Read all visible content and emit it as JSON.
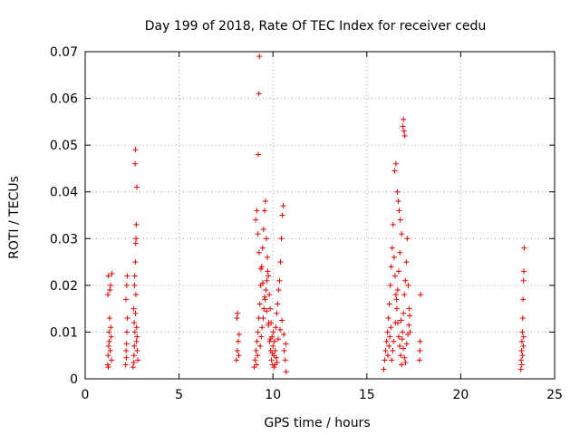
{
  "chart_data": {
    "type": "scatter",
    "title": "Day 199 of 2018, Rate Of TEC Index for receiver cedu",
    "xlabel": "GPS time / hours",
    "ylabel": "ROTI / TECUs",
    "xlim": [
      0,
      25
    ],
    "ylim": [
      0,
      0.07
    ],
    "xticks": [
      "0",
      "5",
      "10",
      "15",
      "20",
      "25"
    ],
    "yticks": [
      "0",
      "0.01",
      "0.02",
      "0.03",
      "0.04",
      "0.05",
      "0.06",
      "0.07"
    ],
    "grid": true,
    "marker": "plus",
    "color": "#e00000",
    "series": [
      {
        "points": [
          [
            1.2,
            0.003
          ],
          [
            1.22,
            0.005
          ],
          [
            1.25,
            0.007
          ],
          [
            1.27,
            0.01
          ],
          [
            1.3,
            0.013
          ],
          [
            1.21,
            0.018
          ],
          [
            1.24,
            0.022
          ],
          [
            1.35,
            0.02
          ],
          [
            1.38,
            0.009
          ],
          [
            1.4,
            0.004
          ],
          [
            1.33,
            0.006
          ],
          [
            1.28,
            0.008
          ],
          [
            1.36,
            0.011
          ],
          [
            1.23,
            0.0025
          ],
          [
            1.42,
            0.0225
          ],
          [
            1.31,
            0.019
          ],
          [
            2.15,
            0.003
          ],
          [
            2.18,
            0.006
          ],
          [
            2.2,
            0.0075
          ],
          [
            2.22,
            0.01
          ],
          [
            2.25,
            0.013
          ],
          [
            2.17,
            0.017
          ],
          [
            2.21,
            0.02
          ],
          [
            2.24,
            0.022
          ],
          [
            2.19,
            0.0045
          ],
          [
            2.55,
            0.0025
          ],
          [
            2.6,
            0.005
          ],
          [
            2.62,
            0.007
          ],
          [
            2.65,
            0.01
          ],
          [
            2.68,
            0.014
          ],
          [
            2.7,
            0.018
          ],
          [
            2.63,
            0.02
          ],
          [
            2.67,
            0.025
          ],
          [
            2.69,
            0.029
          ],
          [
            2.72,
            0.033
          ],
          [
            2.75,
            0.041
          ],
          [
            2.66,
            0.046
          ],
          [
            2.68,
            0.049
          ],
          [
            2.58,
            0.015
          ],
          [
            2.61,
            0.012
          ],
          [
            2.73,
            0.008
          ],
          [
            2.77,
            0.006
          ],
          [
            2.8,
            0.004
          ],
          [
            2.64,
            0.022
          ],
          [
            2.71,
            0.03
          ],
          [
            2.74,
            0.011
          ],
          [
            2.76,
            0.009
          ],
          [
            2.59,
            0.0035
          ],
          [
            8.05,
            0.004
          ],
          [
            8.1,
            0.006
          ],
          [
            8.15,
            0.008
          ],
          [
            8.2,
            0.0095
          ],
          [
            8.08,
            0.013
          ],
          [
            8.12,
            0.014
          ],
          [
            8.18,
            0.005
          ],
          [
            9.0,
            0.0025
          ],
          [
            9.05,
            0.004
          ],
          [
            9.1,
            0.006
          ],
          [
            9.15,
            0.008
          ],
          [
            9.2,
            0.01
          ],
          [
            9.25,
            0.013
          ],
          [
            9.3,
            0.016
          ],
          [
            9.35,
            0.02
          ],
          [
            9.4,
            0.024
          ],
          [
            9.45,
            0.028
          ],
          [
            9.5,
            0.032
          ],
          [
            9.55,
            0.036
          ],
          [
            9.6,
            0.038
          ],
          [
            9.65,
            0.03
          ],
          [
            9.7,
            0.026
          ],
          [
            9.75,
            0.022
          ],
          [
            9.8,
            0.018
          ],
          [
            9.85,
            0.015
          ],
          [
            9.9,
            0.012
          ],
          [
            9.95,
            0.009
          ],
          [
            10.0,
            0.007
          ],
          [
            10.05,
            0.005
          ],
          [
            10.1,
            0.003
          ],
          [
            10.15,
            0.011
          ],
          [
            10.2,
            0.014
          ],
          [
            10.25,
            0.016
          ],
          [
            10.3,
            0.019
          ],
          [
            10.35,
            0.021
          ],
          [
            10.4,
            0.025
          ],
          [
            10.45,
            0.03
          ],
          [
            10.5,
            0.035
          ],
          [
            10.55,
            0.037
          ],
          [
            10.6,
            0.006
          ],
          [
            10.65,
            0.004
          ],
          [
            10.7,
            0.0015
          ],
          [
            9.22,
            0.048
          ],
          [
            9.25,
            0.061
          ],
          [
            9.28,
            0.069
          ],
          [
            9.12,
            0.003
          ],
          [
            9.18,
            0.005
          ],
          [
            9.32,
            0.007
          ],
          [
            9.38,
            0.009
          ],
          [
            9.42,
            0.011
          ],
          [
            9.48,
            0.013
          ],
          [
            9.52,
            0.015
          ],
          [
            9.58,
            0.017
          ],
          [
            9.62,
            0.019
          ],
          [
            9.68,
            0.021
          ],
          [
            9.72,
            0.023
          ],
          [
            9.78,
            0.012
          ],
          [
            9.82,
            0.008
          ],
          [
            9.88,
            0.006
          ],
          [
            9.92,
            0.004
          ],
          [
            9.98,
            0.003
          ],
          [
            10.02,
            0.01
          ],
          [
            10.08,
            0.008
          ],
          [
            10.12,
            0.006
          ],
          [
            10.18,
            0.0045
          ],
          [
            10.22,
            0.0035
          ],
          [
            9.08,
            0.034
          ],
          [
            9.14,
            0.036
          ],
          [
            9.2,
            0.031
          ],
          [
            9.26,
            0.027
          ],
          [
            9.36,
            0.0235
          ],
          [
            9.46,
            0.0205
          ],
          [
            9.56,
            0.0175
          ],
          [
            9.66,
            0.0145
          ],
          [
            9.76,
            0.0115
          ],
          [
            9.86,
            0.0085
          ],
          [
            9.96,
            0.0055
          ],
          [
            10.06,
            0.0025
          ],
          [
            10.28,
            0.0085
          ],
          [
            10.38,
            0.0105
          ],
          [
            10.48,
            0.0125
          ],
          [
            10.58,
            0.0095
          ],
          [
            10.68,
            0.0075
          ],
          [
            15.9,
            0.002
          ],
          [
            15.95,
            0.004
          ],
          [
            16.0,
            0.006
          ],
          [
            16.05,
            0.008
          ],
          [
            16.1,
            0.01
          ],
          [
            16.15,
            0.013
          ],
          [
            16.2,
            0.016
          ],
          [
            16.25,
            0.02
          ],
          [
            16.3,
            0.024
          ],
          [
            16.35,
            0.028
          ],
          [
            16.4,
            0.033
          ],
          [
            16.45,
            0.026
          ],
          [
            16.5,
            0.022
          ],
          [
            16.55,
            0.018
          ],
          [
            16.6,
            0.015
          ],
          [
            16.65,
            0.012
          ],
          [
            16.7,
            0.009
          ],
          [
            16.75,
            0.007
          ],
          [
            16.8,
            0.005
          ],
          [
            16.85,
            0.003
          ],
          [
            16.9,
            0.01
          ],
          [
            16.95,
            0.014
          ],
          [
            17.0,
            0.018
          ],
          [
            17.05,
            0.021
          ],
          [
            17.1,
            0.025
          ],
          [
            17.15,
            0.03
          ],
          [
            17.2,
            0.02
          ],
          [
            17.25,
            0.015
          ],
          [
            17.3,
            0.01
          ],
          [
            16.48,
            0.0445
          ],
          [
            16.55,
            0.046
          ],
          [
            16.62,
            0.04
          ],
          [
            16.68,
            0.038
          ],
          [
            16.72,
            0.036
          ],
          [
            16.78,
            0.034
          ],
          [
            16.85,
            0.031
          ],
          [
            16.92,
            0.054
          ],
          [
            16.95,
            0.0555
          ],
          [
            16.98,
            0.053
          ],
          [
            17.02,
            0.052
          ],
          [
            16.12,
            0.005
          ],
          [
            16.18,
            0.007
          ],
          [
            16.22,
            0.009
          ],
          [
            16.28,
            0.011
          ],
          [
            16.32,
            0.004
          ],
          [
            16.38,
            0.006
          ],
          [
            16.42,
            0.008
          ],
          [
            16.52,
            0.012
          ],
          [
            16.58,
            0.017
          ],
          [
            16.64,
            0.019
          ],
          [
            16.7,
            0.023
          ],
          [
            16.76,
            0.027
          ],
          [
            16.82,
            0.0125
          ],
          [
            16.88,
            0.0085
          ],
          [
            16.94,
            0.0065
          ],
          [
            17.0,
            0.0045
          ],
          [
            17.06,
            0.0035
          ],
          [
            17.12,
            0.0075
          ],
          [
            17.18,
            0.0095
          ],
          [
            17.24,
            0.0115
          ],
          [
            17.28,
            0.0135
          ],
          [
            17.8,
            0.004
          ],
          [
            17.82,
            0.006
          ],
          [
            17.84,
            0.008
          ],
          [
            17.86,
            0.018
          ],
          [
            23.2,
            0.002
          ],
          [
            23.22,
            0.004
          ],
          [
            23.24,
            0.006
          ],
          [
            23.26,
            0.008
          ],
          [
            23.28,
            0.01
          ],
          [
            23.3,
            0.013
          ],
          [
            23.32,
            0.017
          ],
          [
            23.34,
            0.021
          ],
          [
            23.36,
            0.023
          ],
          [
            23.38,
            0.028
          ],
          [
            23.25,
            0.003
          ],
          [
            23.29,
            0.005
          ],
          [
            23.33,
            0.007
          ],
          [
            23.35,
            0.009
          ]
        ]
      }
    ]
  }
}
